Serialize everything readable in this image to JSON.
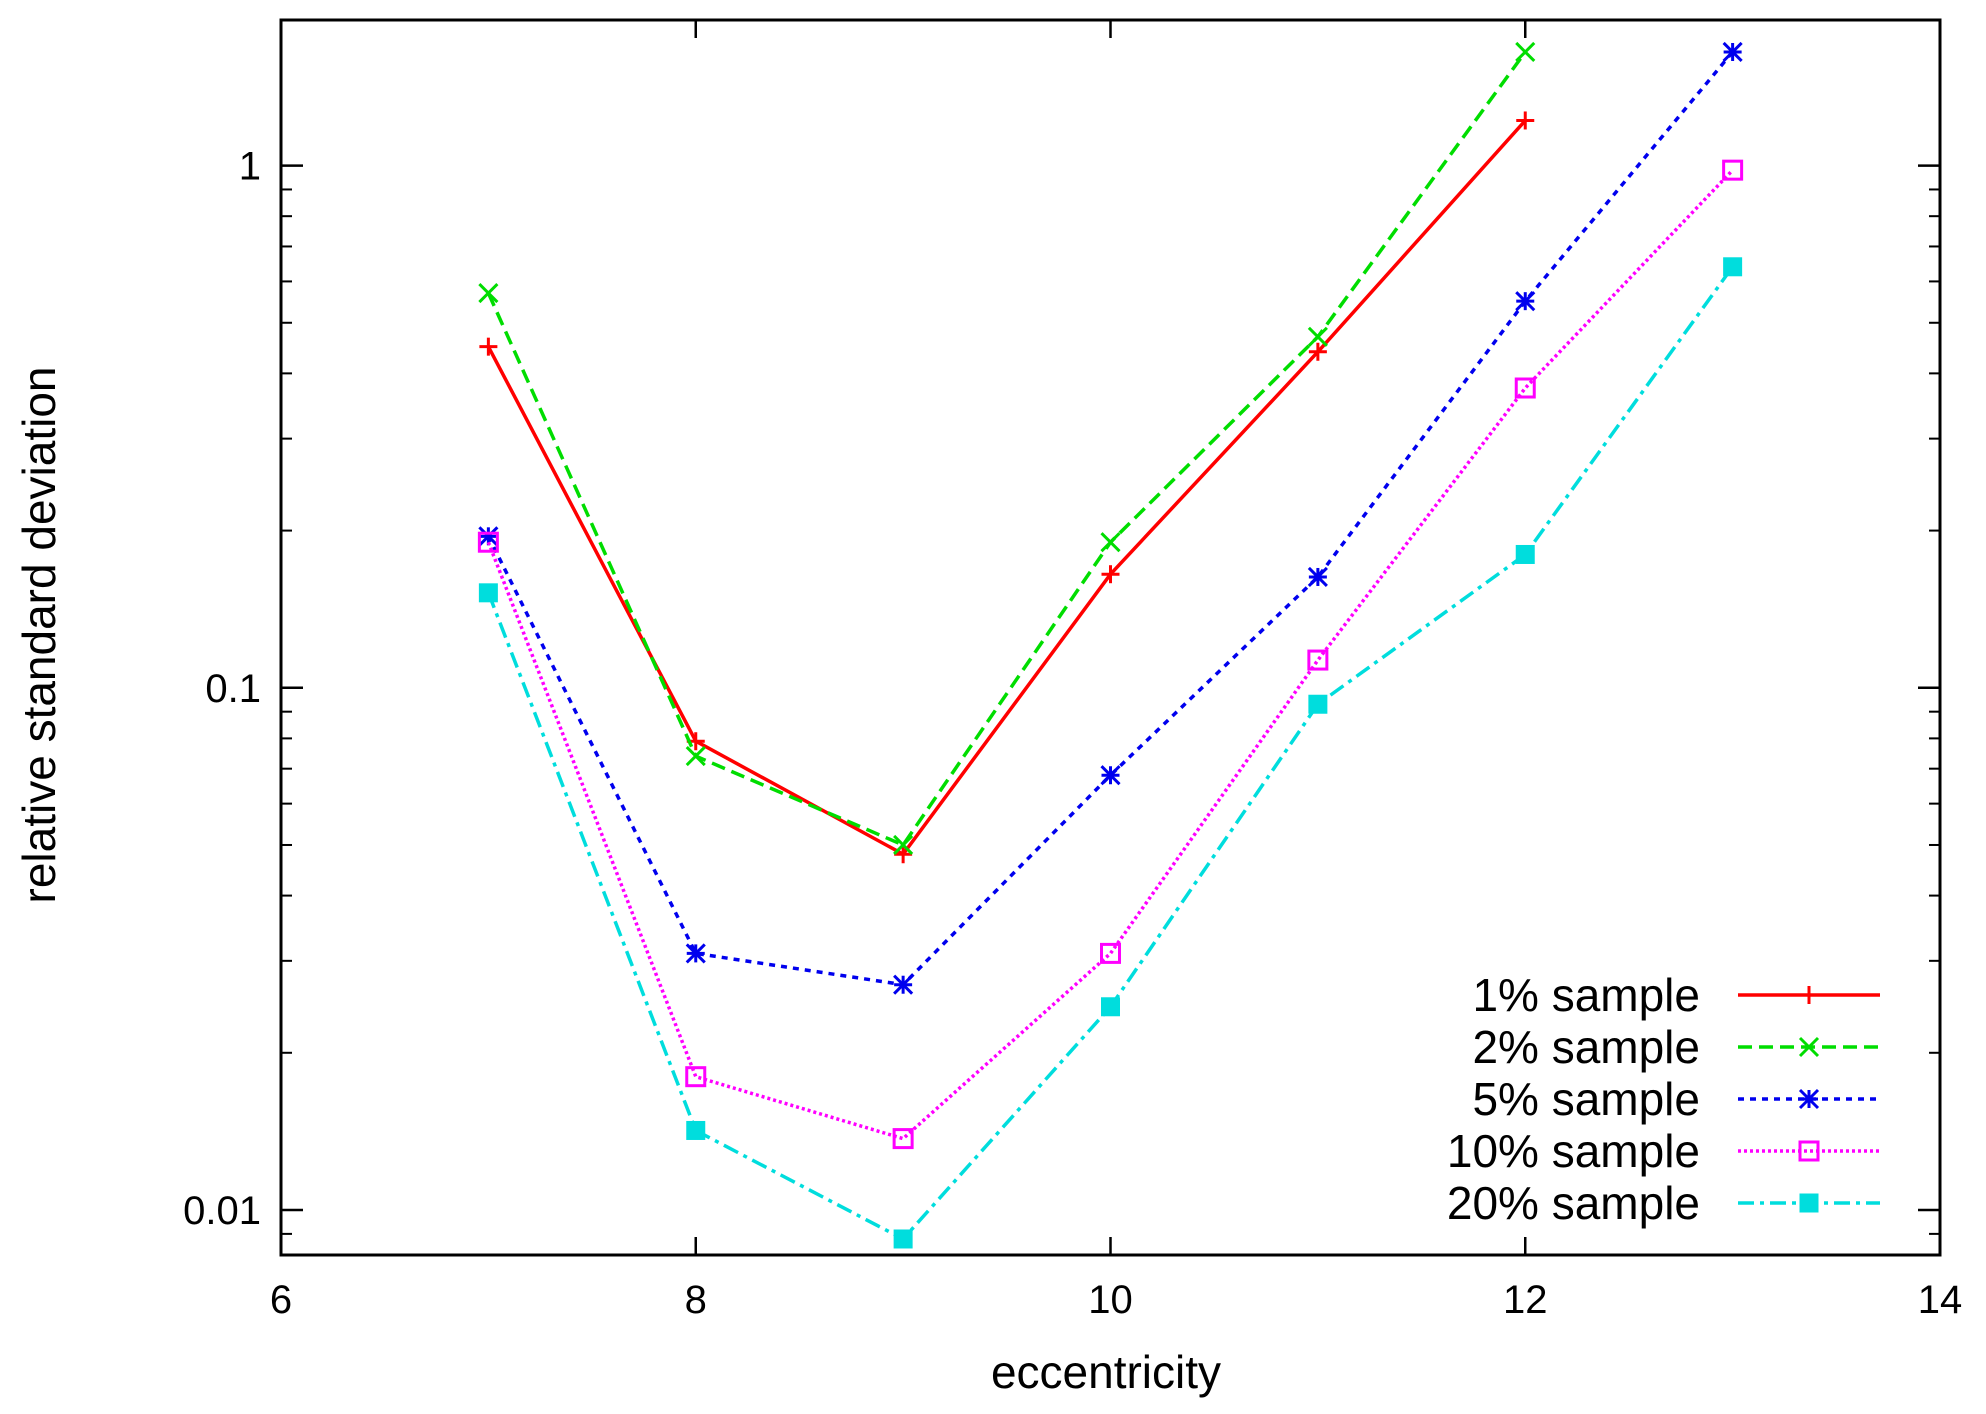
{
  "chart_data": {
    "type": "line",
    "title": "",
    "xlabel": "eccentricity",
    "ylabel": "relative standard deviation",
    "xlim": [
      6,
      14
    ],
    "ylim": [
      0.0082,
      1.9
    ],
    "yscale": "log",
    "grid": false,
    "legend_position": "bottom-right",
    "x_ticks": [
      6,
      8,
      10,
      12,
      14
    ],
    "x_tick_labels": [
      "6",
      "8",
      "10",
      "12",
      "14"
    ],
    "y_ticks": [
      0.01,
      0.1,
      1
    ],
    "y_tick_labels": [
      "0.01",
      "0.1",
      "1"
    ],
    "series": [
      {
        "name": "1% sample",
        "color": "#ff0000",
        "dash": "solid",
        "marker": "plus",
        "x": [
          7,
          8,
          9,
          10,
          11,
          12
        ],
        "values": [
          0.45,
          0.079,
          0.048,
          0.165,
          0.44,
          1.22
        ]
      },
      {
        "name": "2% sample",
        "color": "#00dd00",
        "dash": "dashed",
        "marker": "cross",
        "x": [
          7,
          8,
          9,
          10,
          11,
          12
        ],
        "values": [
          0.57,
          0.074,
          0.05,
          0.19,
          0.47,
          1.65
        ]
      },
      {
        "name": "5% sample",
        "color": "#0000ee",
        "dash": "dotted",
        "marker": "star",
        "x": [
          7,
          8,
          9,
          10,
          11,
          12,
          13
        ],
        "values": [
          0.195,
          0.031,
          0.027,
          0.068,
          0.163,
          0.55,
          1.65
        ]
      },
      {
        "name": "10% sample",
        "color": "#ff00ff",
        "dash": "fine-dotted",
        "marker": "open-square",
        "x": [
          7,
          8,
          9,
          10,
          11,
          12,
          13
        ],
        "values": [
          0.19,
          0.018,
          0.0137,
          0.031,
          0.113,
          0.375,
          0.98
        ]
      },
      {
        "name": "20% sample",
        "color": "#00dddd",
        "dash": "dash-dot",
        "marker": "filled-square",
        "x": [
          7,
          8,
          9,
          10,
          11,
          12,
          13
        ],
        "values": [
          0.152,
          0.0142,
          0.0088,
          0.0245,
          0.093,
          0.18,
          0.64
        ]
      }
    ]
  }
}
